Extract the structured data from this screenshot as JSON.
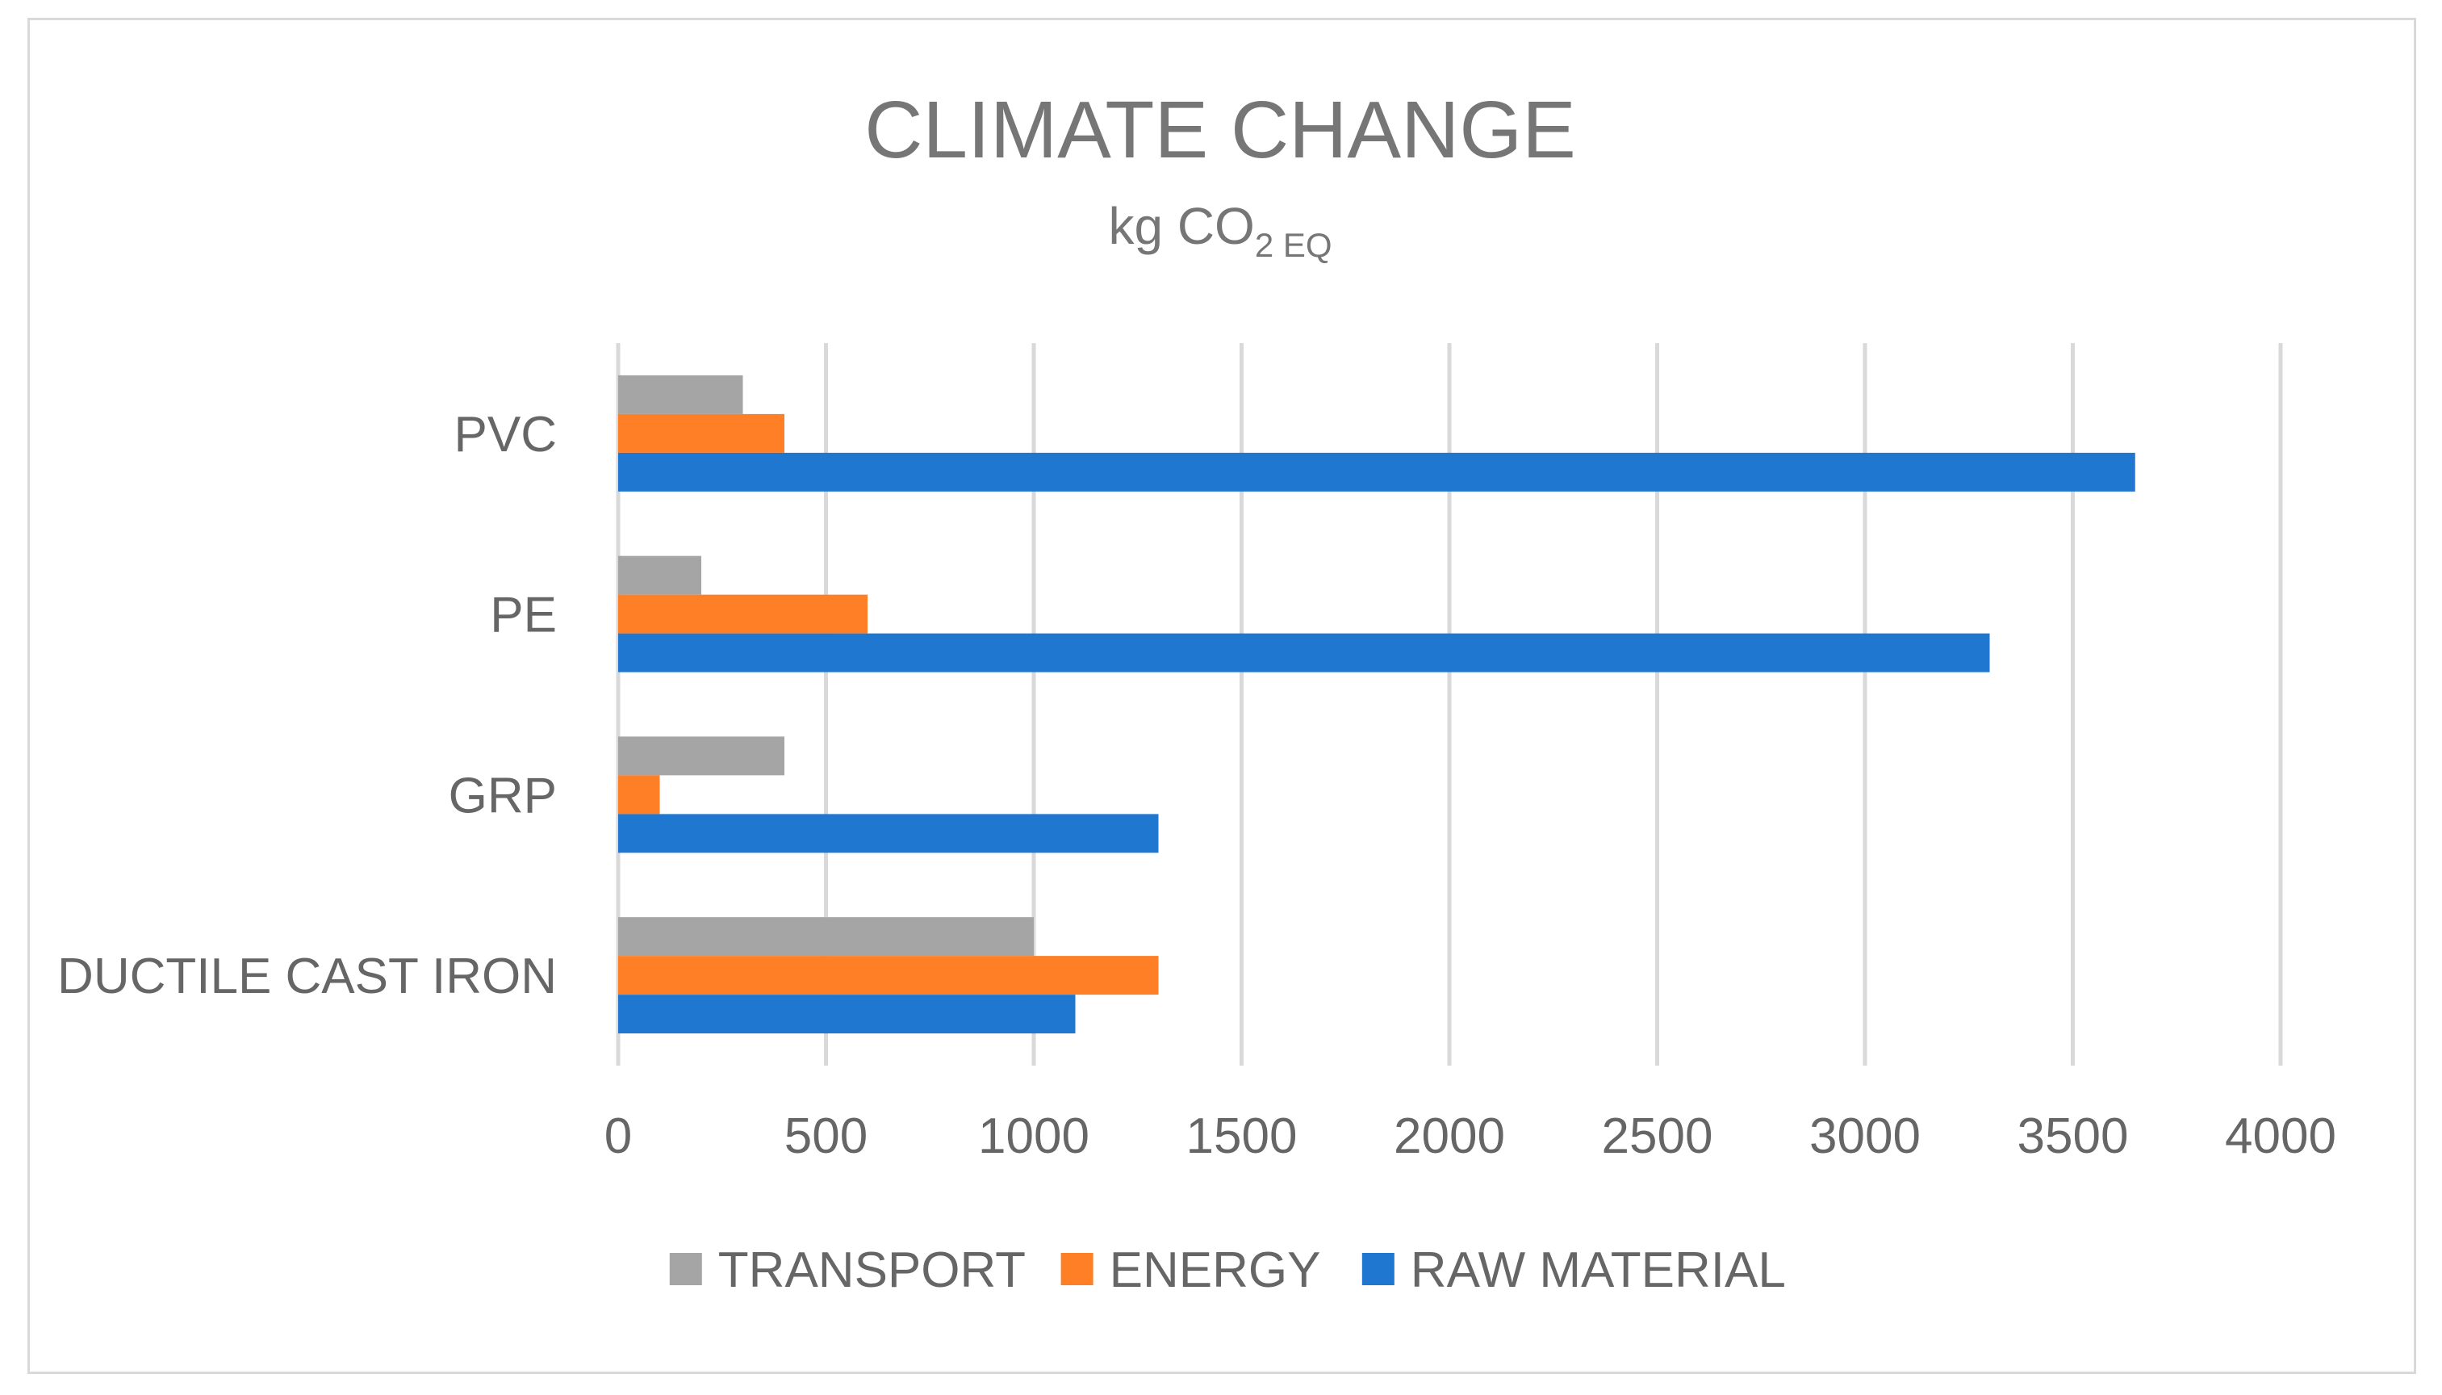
{
  "chart_data": {
    "type": "bar",
    "orientation": "horizontal",
    "title": "CLIMATE CHANGE",
    "subtitle": {
      "prefix": "kg CO",
      "subscript": "2 EQ"
    },
    "categories": [
      "PVC",
      "PE",
      "GRP",
      "DUCTILE CAST IRON"
    ],
    "series": [
      {
        "name": "TRANSPORT",
        "color": "#a5a5a5",
        "values": [
          300,
          200,
          400,
          1000
        ]
      },
      {
        "name": "ENERGY",
        "color": "#ff7f27",
        "values": [
          400,
          600,
          100,
          1300
        ]
      },
      {
        "name": "RAW MATERIAL",
        "color": "#1f77d0",
        "values": [
          3650,
          3300,
          1300,
          1100
        ]
      }
    ],
    "xlim": [
      0,
      4000
    ],
    "xticks": [
      "0",
      "500",
      "1000",
      "1500",
      "2000",
      "2500",
      "3000",
      "3500",
      "4000"
    ],
    "grid": true,
    "legend_position": "bottom"
  }
}
